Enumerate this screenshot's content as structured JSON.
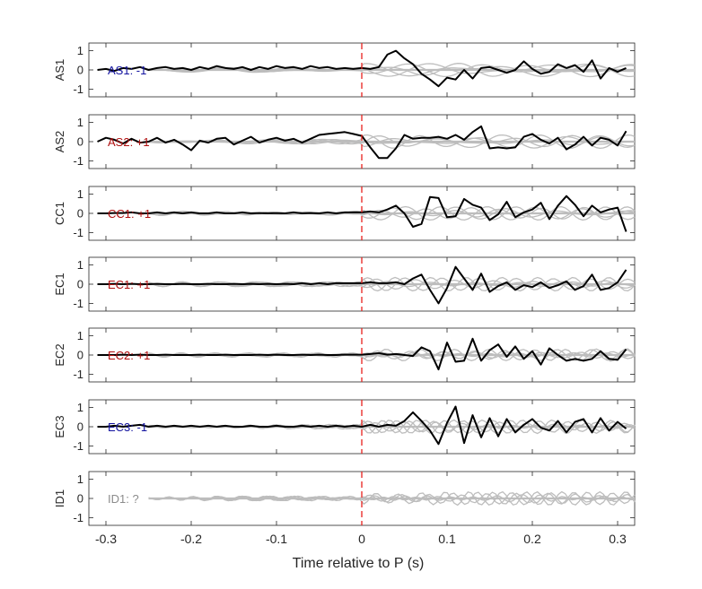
{
  "chart_data": {
    "type": "line",
    "xlabel": "Time relative to P (s)",
    "xlim": [
      -0.32,
      0.32
    ],
    "xticks": [
      -0.3,
      -0.2,
      -0.1,
      0,
      0.1,
      0.2,
      0.3
    ],
    "xtick_labels": [
      "-0.3",
      "-0.2",
      "-0.1",
      "0",
      "0.1",
      "0.2",
      "0.3"
    ],
    "ylim": [
      -1.4,
      1.4
    ],
    "yticks": [
      1,
      0,
      -1
    ],
    "ytick_labels": [
      "1",
      "0",
      "-1"
    ],
    "grid": false,
    "marker_line": {
      "x": 0,
      "color": "#e8211d",
      "style": "dashed"
    },
    "colors": {
      "trace": "#000000",
      "background_traces": "#bdbdbd",
      "positive": "#b01010",
      "negative": "#1414a0",
      "unknown": "#8c8c8c"
    },
    "panels": [
      {
        "ylabel": "AS1",
        "annotation": "AS1: -1",
        "annotation_color": "#1414a0",
        "series": [
          {
            "x": [
              -0.31,
              -0.3,
              -0.29,
              -0.28,
              -0.27,
              -0.26,
              -0.25,
              -0.24,
              -0.23,
              -0.22,
              -0.21,
              -0.2,
              -0.19,
              -0.18,
              -0.17,
              -0.16,
              -0.15,
              -0.14,
              -0.13,
              -0.12,
              -0.11,
              -0.1,
              -0.09,
              -0.08,
              -0.07,
              -0.06,
              -0.05,
              -0.04,
              -0.03,
              -0.02,
              -0.01,
              0,
              0.01,
              0.02,
              0.03,
              0.04,
              0.05,
              0.06,
              0.07,
              0.08,
              0.09,
              0.1,
              0.11,
              0.12,
              0.13,
              0.14,
              0.15,
              0.16,
              0.17,
              0.18,
              0.19,
              0.2,
              0.21,
              0.22,
              0.23,
              0.24,
              0.25,
              0.26,
              0.27,
              0.28,
              0.29,
              0.3,
              0.31
            ],
            "y": [
              0,
              0.05,
              -0.05,
              0.1,
              0.05,
              0.15,
              0,
              0.1,
              0.15,
              0.05,
              0.1,
              0,
              0.15,
              0.05,
              0.2,
              0.1,
              0.05,
              0.15,
              0,
              0.15,
              0.05,
              0.2,
              0.1,
              0.15,
              0.05,
              0.2,
              0.1,
              0.15,
              0.05,
              0.1,
              0.05,
              0.1,
              0.05,
              0.15,
              0.8,
              1,
              0.6,
              0.3,
              -0.2,
              -0.5,
              -0.85,
              -0.4,
              -0.5,
              0,
              -0.45,
              0.1,
              0.15,
              0,
              -0.15,
              0,
              0.45,
              0.05,
              -0.2,
              -0.1,
              0.3,
              0.1,
              0.25,
              -0.1,
              0.5,
              -0.45,
              0.1,
              -0.1,
              0.1
            ]
          }
        ]
      },
      {
        "ylabel": "AS2",
        "annotation": "AS2: +1",
        "annotation_color": "#b01010",
        "series": [
          {
            "x": [
              -0.31,
              -0.3,
              -0.29,
              -0.28,
              -0.27,
              -0.26,
              -0.25,
              -0.24,
              -0.23,
              -0.22,
              -0.21,
              -0.2,
              -0.19,
              -0.18,
              -0.17,
              -0.16,
              -0.15,
              -0.14,
              -0.13,
              -0.12,
              -0.11,
              -0.1,
              -0.09,
              -0.08,
              -0.07,
              -0.06,
              -0.05,
              -0.04,
              -0.03,
              -0.02,
              -0.01,
              0,
              0.01,
              0.02,
              0.03,
              0.04,
              0.05,
              0.06,
              0.07,
              0.08,
              0.09,
              0.1,
              0.11,
              0.12,
              0.13,
              0.14,
              0.15,
              0.16,
              0.17,
              0.18,
              0.19,
              0.2,
              0.21,
              0.22,
              0.23,
              0.24,
              0.25,
              0.26,
              0.27,
              0.28,
              0.29,
              0.3,
              0.31
            ],
            "y": [
              0,
              0.2,
              0.1,
              -0.1,
              0.15,
              -0.05,
              0,
              0.2,
              -0.05,
              0.1,
              -0.15,
              -0.45,
              0.05,
              -0.05,
              0.15,
              0.2,
              -0.15,
              0.05,
              0.25,
              -0.05,
              0.1,
              0.2,
              0.05,
              0.15,
              -0.05,
              0.15,
              0.35,
              0.4,
              0.45,
              0.5,
              0.4,
              0.3,
              -0.3,
              -0.85,
              -0.85,
              -0.35,
              0.35,
              0.15,
              0.2,
              0.2,
              0.25,
              0.15,
              0.35,
              0.1,
              0.5,
              0.8,
              -0.35,
              -0.3,
              -0.35,
              -0.3,
              0.25,
              0.4,
              0.1,
              -0.1,
              0.2,
              -0.4,
              -0.15,
              0.25,
              -0.2,
              0.2,
              0.1,
              -0.2,
              0.55
            ]
          }
        ]
      },
      {
        "ylabel": "CC1",
        "annotation": "CC1: +1",
        "annotation_color": "#b01010",
        "series": [
          {
            "x": [
              -0.31,
              -0.3,
              -0.29,
              -0.28,
              -0.27,
              -0.26,
              -0.25,
              -0.24,
              -0.23,
              -0.22,
              -0.21,
              -0.2,
              -0.19,
              -0.18,
              -0.17,
              -0.16,
              -0.15,
              -0.14,
              -0.13,
              -0.12,
              -0.11,
              -0.1,
              -0.09,
              -0.08,
              -0.07,
              -0.06,
              -0.05,
              -0.04,
              -0.03,
              -0.02,
              -0.01,
              0,
              0.01,
              0.02,
              0.03,
              0.04,
              0.05,
              0.06,
              0.07,
              0.08,
              0.09,
              0.1,
              0.11,
              0.12,
              0.13,
              0.14,
              0.15,
              0.16,
              0.17,
              0.18,
              0.19,
              0.2,
              0.21,
              0.22,
              0.23,
              0.24,
              0.25,
              0.26,
              0.27,
              0.28,
              0.29,
              0.3,
              0.31
            ],
            "y": [
              0,
              0,
              0.02,
              0.02,
              0.05,
              0,
              0,
              0.05,
              0,
              0.05,
              0,
              0.05,
              0,
              0,
              0.05,
              0,
              0,
              0.05,
              0,
              0.02,
              0,
              0.02,
              0,
              0.05,
              0,
              0.02,
              0,
              0.05,
              0,
              0.05,
              0.05,
              0.05,
              0.1,
              0.05,
              0.2,
              0.4,
              0,
              -0.7,
              -0.55,
              0.85,
              0.8,
              -0.2,
              -0.15,
              0.75,
              0.45,
              0.3,
              -0.35,
              -0.05,
              0.6,
              -0.2,
              0.05,
              0.2,
              0.55,
              -0.3,
              0.4,
              0.9,
              0.45,
              -0.15,
              0.4,
              0.05,
              0.2,
              0.3,
              -0.95
            ]
          }
        ]
      },
      {
        "ylabel": "EC1",
        "annotation": "EC1: +1",
        "annotation_color": "#b01010",
        "series": [
          {
            "x": [
              -0.31,
              -0.3,
              -0.29,
              -0.28,
              -0.27,
              -0.26,
              -0.25,
              -0.24,
              -0.23,
              -0.22,
              -0.21,
              -0.2,
              -0.19,
              -0.18,
              -0.17,
              -0.16,
              -0.15,
              -0.14,
              -0.13,
              -0.12,
              -0.11,
              -0.1,
              -0.09,
              -0.08,
              -0.07,
              -0.06,
              -0.05,
              -0.04,
              -0.03,
              -0.02,
              -0.01,
              0,
              0.01,
              0.02,
              0.03,
              0.04,
              0.05,
              0.06,
              0.07,
              0.08,
              0.09,
              0.1,
              0.11,
              0.12,
              0.13,
              0.14,
              0.15,
              0.16,
              0.17,
              0.18,
              0.19,
              0.2,
              0.21,
              0.22,
              0.23,
              0.24,
              0.25,
              0.26,
              0.27,
              0.28,
              0.29,
              0.3,
              0.31
            ],
            "y": [
              0,
              0,
              0.02,
              0,
              0.02,
              0,
              0,
              0.02,
              0,
              0,
              0.02,
              0,
              0,
              0.02,
              0,
              0,
              0.02,
              0,
              0.02,
              0,
              0.02,
              0,
              0.02,
              0,
              0.05,
              0,
              0.05,
              0,
              0.05,
              0.05,
              0.05,
              0.05,
              0.1,
              0.05,
              0.05,
              0.1,
              0,
              0.3,
              0.5,
              -0.3,
              -1,
              -0.2,
              0.9,
              0.3,
              -0.3,
              0.55,
              -0.4,
              -0.1,
              0.1,
              -0.3,
              -0.05,
              -0.15,
              0.1,
              -0.2,
              -0.05,
              0.15,
              -0.3,
              -0.1,
              0.5,
              -0.3,
              -0.2,
              0.1,
              0.75
            ]
          }
        ]
      },
      {
        "ylabel": "EC2",
        "annotation": "EC2: +1",
        "annotation_color": "#b01010",
        "series": [
          {
            "x": [
              -0.31,
              -0.3,
              -0.29,
              -0.28,
              -0.27,
              -0.26,
              -0.25,
              -0.24,
              -0.23,
              -0.22,
              -0.21,
              -0.2,
              -0.19,
              -0.18,
              -0.17,
              -0.16,
              -0.15,
              -0.14,
              -0.13,
              -0.12,
              -0.11,
              -0.1,
              -0.09,
              -0.08,
              -0.07,
              -0.06,
              -0.05,
              -0.04,
              -0.03,
              -0.02,
              -0.01,
              0,
              0.01,
              0.02,
              0.03,
              0.04,
              0.05,
              0.06,
              0.07,
              0.08,
              0.09,
              0.1,
              0.11,
              0.12,
              0.13,
              0.14,
              0.15,
              0.16,
              0.17,
              0.18,
              0.19,
              0.2,
              0.21,
              0.22,
              0.23,
              0.24,
              0.25,
              0.26,
              0.27,
              0.28,
              0.29,
              0.3,
              0.31
            ],
            "y": [
              0,
              0,
              0,
              0.02,
              0,
              0.02,
              0,
              0,
              0.02,
              0,
              0,
              0,
              0.02,
              0,
              0,
              0.02,
              0,
              0,
              0,
              0.02,
              0,
              0.02,
              0,
              0,
              0.02,
              0,
              0.02,
              0,
              0,
              0.02,
              0.02,
              0.02,
              0.05,
              0.1,
              0.02,
              0.05,
              0,
              -0.05,
              0.4,
              0.2,
              -0.75,
              0.65,
              -0.35,
              -0.3,
              0.85,
              -0.3,
              0.25,
              0.55,
              -0.1,
              0.45,
              -0.2,
              0.2,
              -0.5,
              0.35,
              0,
              -0.3,
              -0.2,
              -0.3,
              -0.2,
              0.2,
              -0.2,
              -0.25,
              0.3
            ]
          }
        ]
      },
      {
        "ylabel": "EC3",
        "annotation": "EC3: -1",
        "annotation_color": "#1414a0",
        "series": [
          {
            "x": [
              -0.31,
              -0.3,
              -0.29,
              -0.28,
              -0.27,
              -0.26,
              -0.25,
              -0.24,
              -0.23,
              -0.22,
              -0.21,
              -0.2,
              -0.19,
              -0.18,
              -0.17,
              -0.16,
              -0.15,
              -0.14,
              -0.13,
              -0.12,
              -0.11,
              -0.1,
              -0.09,
              -0.08,
              -0.07,
              -0.06,
              -0.05,
              -0.04,
              -0.03,
              -0.02,
              -0.01,
              0,
              0.01,
              0.02,
              0.03,
              0.04,
              0.05,
              0.06,
              0.07,
              0.08,
              0.09,
              0.1,
              0.11,
              0.12,
              0.13,
              0.14,
              0.15,
              0.16,
              0.17,
              0.18,
              0.19,
              0.2,
              0.21,
              0.22,
              0.23,
              0.24,
              0.25,
              0.26,
              0.27,
              0.28,
              0.29,
              0.3,
              0.31
            ],
            "y": [
              0,
              0,
              0.05,
              0,
              0.05,
              0.1,
              0,
              0.05,
              0,
              0.05,
              0,
              0.05,
              0,
              0.05,
              0,
              0.05,
              0,
              0,
              0.05,
              0,
              0,
              0.05,
              0,
              0,
              0.05,
              0,
              0.05,
              0,
              0.05,
              0,
              0.05,
              0,
              0.1,
              0,
              0.1,
              0.05,
              0.3,
              0.75,
              0.3,
              -0.2,
              -0.9,
              0.2,
              1.05,
              -0.85,
              0.6,
              -0.55,
              0.45,
              -0.5,
              0.4,
              -0.3,
              0.1,
              0.4,
              -0.05,
              -0.2,
              0.3,
              -0.3,
              0.25,
              0.4,
              -0.3,
              0.45,
              -0.2,
              0.25,
              -0.1
            ]
          }
        ]
      },
      {
        "ylabel": "ID1",
        "annotation": "ID1: ?",
        "annotation_color": "#8c8c8c",
        "series": []
      }
    ]
  }
}
